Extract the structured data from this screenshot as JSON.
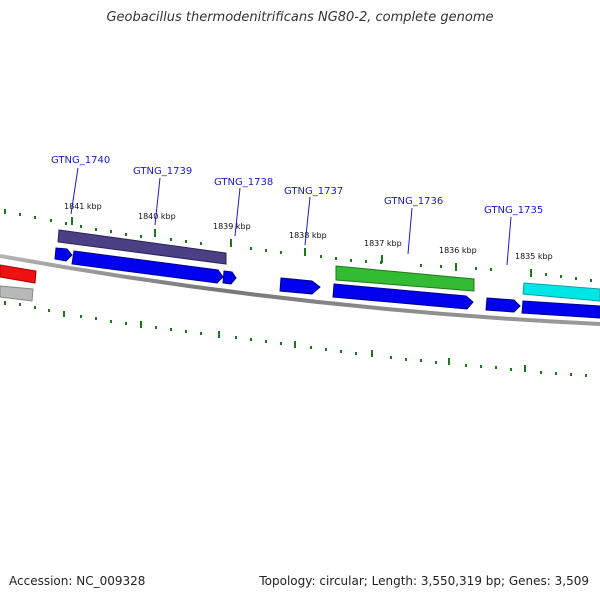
{
  "title": "Geobacillus thermodenitrificans NG80-2, complete genome",
  "footer": {
    "accession": "Accession: NC_009328",
    "summary": "Topology: circular; Length: 3,550,319 bp; Genes: 3,509"
  },
  "genes": [
    {
      "label": "GTNG_1740"
    },
    {
      "label": "GTNG_1739"
    },
    {
      "label": "GTNG_1738"
    },
    {
      "label": "GTNG_1737"
    },
    {
      "label": "GTNG_1736"
    },
    {
      "label": "GTNG_1735"
    }
  ],
  "ticks": [
    "1841 kbp",
    "1840 kbp",
    "1839 kbp",
    "1838 kbp",
    "1837 kbp",
    "1836 kbp",
    "1835 kbp"
  ],
  "colors": {
    "backbone": "#7a7a7a",
    "cds": "#0000ee",
    "gene_dark": "#4b3f86",
    "gene_green": "#33bb33",
    "gene_cyan": "#00e5e5",
    "gene_red": "#ee1111",
    "tick": "#1a7a1a",
    "label": "#1a1acc"
  }
}
